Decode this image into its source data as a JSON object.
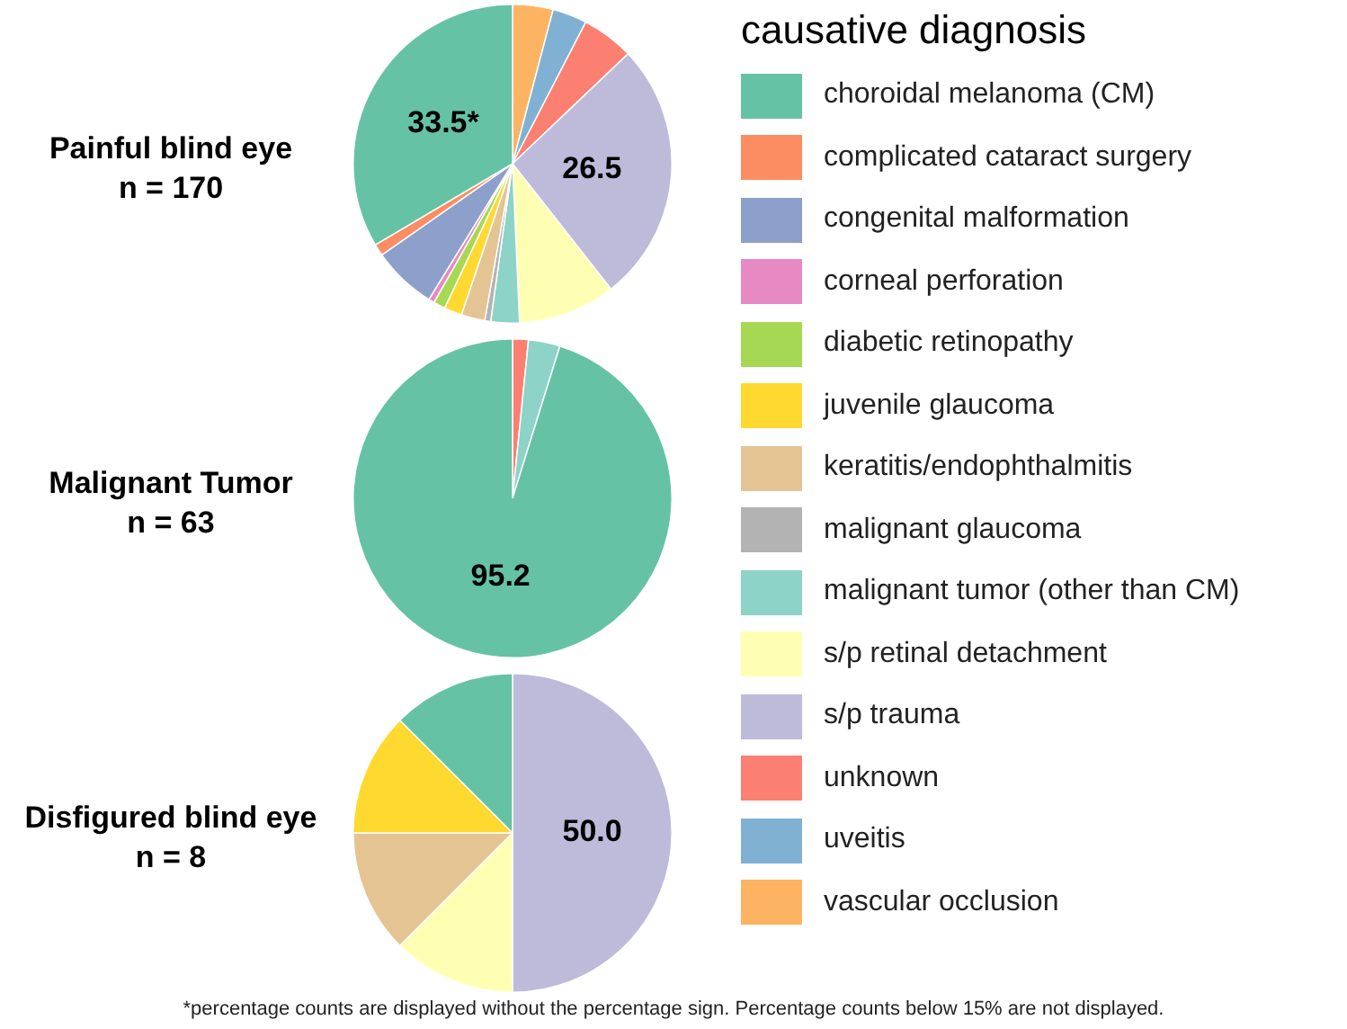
{
  "chart_data": [
    {
      "type": "pie",
      "title": "Painful blind eye",
      "subtitle": "n = 170",
      "legend": "right",
      "legend_title": "causative diagnosis",
      "categories": [
        "choroidal melanoma (CM)",
        "complicated cataract surgery",
        "congenital malformation",
        "corneal perforation",
        "diabetic retinopathy",
        "juvenile glaucoma",
        "keratitis/endophthalmitis",
        "malignant glaucoma",
        "malignant tumor (other than CM)",
        "s/p retinal detachment",
        "s/p trauma",
        "unknown",
        "uveitis",
        "vascular occlusion"
      ],
      "values": [
        33.5,
        1.2,
        6.5,
        0.6,
        1.2,
        1.8,
        2.4,
        0.6,
        2.9,
        9.9,
        26.5,
        5.3,
        3.5,
        4.1
      ],
      "colors": [
        "#66c2a5",
        "#fc8d62",
        "#8da0cb",
        "#e78ac3",
        "#a6d854",
        "#ffd92f",
        "#e5c494",
        "#b3b3b3",
        "#8dd3c7",
        "#ffffb3",
        "#bebada",
        "#fb8072",
        "#80b1d3",
        "#fdb462"
      ],
      "value_labels": [
        "33.5*",
        null,
        null,
        null,
        null,
        null,
        null,
        null,
        null,
        null,
        "26.5",
        null,
        null,
        null
      ]
    },
    {
      "type": "pie",
      "title": "Malignant Tumor",
      "subtitle": "n = 63",
      "categories": [
        null,
        null,
        null
      ],
      "values": [
        95.2,
        3.2,
        1.6
      ],
      "colors": [
        "#66c2a5",
        "#8dd3c7",
        "#fb8072"
      ],
      "value_labels": [
        "95.2",
        null,
        null
      ]
    },
    {
      "type": "pie",
      "title": "Disfigured blind eye",
      "subtitle": "n = 8",
      "categories": [
        null,
        null,
        null,
        null,
        null
      ],
      "values": [
        12.5,
        12.5,
        12.5,
        12.5,
        50.0
      ],
      "colors": [
        "#66c2a5",
        "#ffd92f",
        "#e5c494",
        "#ffffb3",
        "#bebada"
      ],
      "value_labels": [
        null,
        null,
        null,
        null,
        "50.0"
      ],
      "annotations": [
        "*percentage counts are displayed without the percentage sign. Percentage counts below 15% are not displayed."
      ]
    }
  ]
}
